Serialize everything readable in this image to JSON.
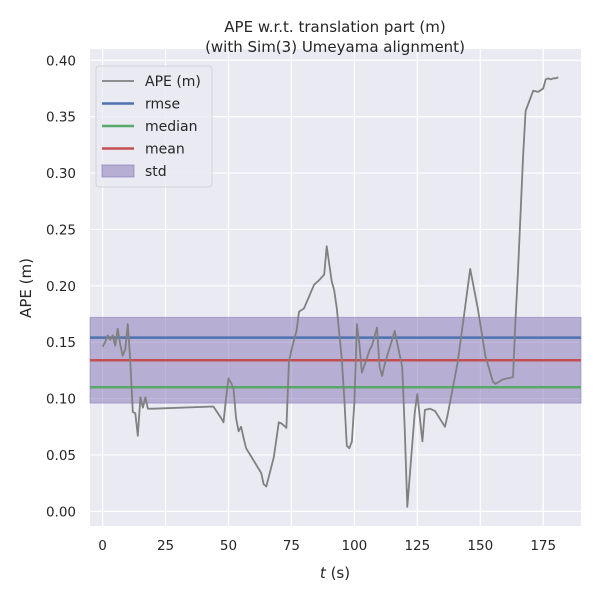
{
  "chart_data": {
    "type": "line",
    "title": "APE w.r.t. translation part (m)",
    "subtitle": "(with Sim(3) Umeyama alignment)",
    "xlabel_var": "t",
    "xlabel_unit": " (s)",
    "ylabel": "APE (m)",
    "xlim": [
      -5,
      190
    ],
    "ylim": [
      -0.013,
      0.41
    ],
    "xticks": [
      0,
      25,
      50,
      75,
      100,
      125,
      150,
      175
    ],
    "yticks": [
      0.0,
      0.05,
      0.1,
      0.15,
      0.2,
      0.25,
      0.3,
      0.35,
      0.4
    ],
    "ytick_labels": [
      "0.00",
      "0.05",
      "0.10",
      "0.15",
      "0.20",
      "0.25",
      "0.30",
      "0.35",
      "0.40"
    ],
    "grid": true,
    "background": "#eaeaf2",
    "legend_position": "top-left",
    "series": [
      {
        "name": "APE (m)",
        "color": "#808080",
        "x": [
          0,
          1,
          2,
          3,
          4,
          5,
          6,
          7,
          8,
          9,
          10,
          11,
          12,
          13,
          14,
          15,
          16,
          17,
          18,
          20,
          44,
          47,
          48,
          49,
          50,
          51,
          52,
          53,
          54,
          55,
          56,
          57,
          60,
          63,
          64,
          65,
          68,
          70,
          71,
          72,
          73,
          74,
          75,
          77,
          78,
          80,
          84,
          86,
          88,
          89,
          91,
          92,
          93,
          95,
          96,
          97,
          98,
          99,
          100,
          101,
          102,
          103,
          105,
          106,
          107,
          109,
          110,
          111,
          112,
          116,
          119,
          120,
          121,
          123,
          124,
          125,
          127,
          128,
          130,
          132,
          136,
          137,
          140,
          141,
          143,
          146,
          149,
          152,
          155,
          156,
          159,
          163,
          164,
          165,
          167,
          168,
          171,
          173,
          175,
          176,
          177,
          178,
          179,
          180,
          181
        ],
        "y": [
          0.146,
          0.15,
          0.156,
          0.152,
          0.156,
          0.147,
          0.162,
          0.148,
          0.138,
          0.144,
          0.166,
          0.133,
          0.088,
          0.087,
          0.067,
          0.101,
          0.092,
          0.101,
          0.091,
          0.091,
          0.093,
          0.083,
          0.079,
          0.1,
          0.118,
          0.114,
          0.109,
          0.083,
          0.071,
          0.075,
          0.065,
          0.056,
          0.045,
          0.034,
          0.024,
          0.022,
          0.048,
          0.079,
          0.078,
          0.076,
          0.074,
          0.132,
          0.143,
          0.16,
          0.177,
          0.18,
          0.201,
          0.205,
          0.21,
          0.235,
          0.204,
          0.196,
          0.18,
          0.135,
          0.1,
          0.058,
          0.056,
          0.062,
          0.097,
          0.166,
          0.148,
          0.123,
          0.136,
          0.143,
          0.147,
          0.163,
          0.128,
          0.12,
          0.13,
          0.16,
          0.128,
          0.074,
          0.004,
          0.06,
          0.088,
          0.104,
          0.062,
          0.09,
          0.091,
          0.089,
          0.075,
          0.085,
          0.12,
          0.132,
          0.165,
          0.215,
          0.18,
          0.138,
          0.115,
          0.113,
          0.117,
          0.119,
          0.17,
          0.215,
          0.315,
          0.355,
          0.373,
          0.372,
          0.375,
          0.383,
          0.384,
          0.383,
          0.384,
          0.384,
          0.385
        ]
      },
      {
        "name": "rmse",
        "color": "#4c72b0",
        "value": 0.154
      },
      {
        "name": "median",
        "color": "#55a868",
        "value": 0.11
      },
      {
        "name": "mean",
        "color": "#c44e52",
        "value": 0.134
      },
      {
        "name": "std",
        "color": "#8172b3",
        "range": [
          0.096,
          0.172
        ]
      }
    ]
  }
}
